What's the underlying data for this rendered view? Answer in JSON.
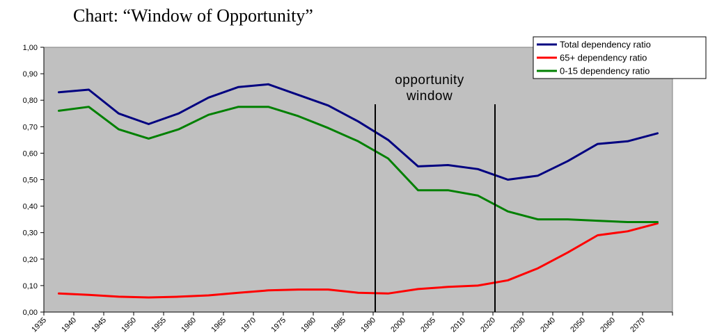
{
  "page": {
    "title": "Chart: “Window of Opportunity”"
  },
  "chart_data": {
    "type": "line",
    "title": "Chart: “Window of Opportunity”",
    "xlabel": "",
    "ylabel": "",
    "ylim": [
      0,
      1
    ],
    "y_ticks": [
      "0,00",
      "0,10",
      "0,20",
      "0,30",
      "0,40",
      "0,50",
      "0,60",
      "0,70",
      "0,80",
      "0,90",
      "1,00"
    ],
    "x_ticks": [
      "1935",
      "1940",
      "1945",
      "1950",
      "1955",
      "1960",
      "1965",
      "1970",
      "1975",
      "1980",
      "1985",
      "1990",
      "2000",
      "2005",
      "2010",
      "2020",
      "2030",
      "2040",
      "2050",
      "2060",
      "2070"
    ],
    "x": [
      1940,
      1945,
      1950,
      1955,
      1960,
      1965,
      1970,
      1975,
      1980,
      1985,
      1990,
      1995,
      2000,
      2005,
      2010,
      2020,
      2030,
      2040,
      2050,
      2060,
      2070
    ],
    "series": [
      {
        "name": "Total dependency ratio",
        "color": "#000080",
        "values": [
          0.83,
          0.84,
          0.75,
          0.71,
          0.75,
          0.81,
          0.85,
          0.86,
          0.82,
          0.78,
          0.72,
          0.65,
          0.55,
          0.555,
          0.54,
          0.5,
          0.515,
          0.57,
          0.635,
          0.645,
          0.675
        ]
      },
      {
        "name": "65+ dependency ratio",
        "color": "#ff0000",
        "values": [
          0.07,
          0.065,
          0.058,
          0.055,
          0.058,
          0.063,
          0.073,
          0.082,
          0.085,
          0.085,
          0.073,
          0.07,
          0.087,
          0.095,
          0.1,
          0.12,
          0.165,
          0.225,
          0.29,
          0.305,
          0.335
        ]
      },
      {
        "name": "0-15 dependency ratio",
        "color": "#008000",
        "values": [
          0.76,
          0.775,
          0.69,
          0.655,
          0.69,
          0.745,
          0.775,
          0.775,
          0.74,
          0.695,
          0.645,
          0.58,
          0.46,
          0.46,
          0.44,
          0.38,
          0.35,
          0.35,
          0.345,
          0.34,
          0.34
        ]
      }
    ],
    "window_markers": {
      "start_index": 11,
      "end_index": 15,
      "label_line1": "opportunity",
      "label_line2": "window"
    },
    "grid": false,
    "plot_background": "#c0c0c0",
    "legend_position": "top-right"
  }
}
